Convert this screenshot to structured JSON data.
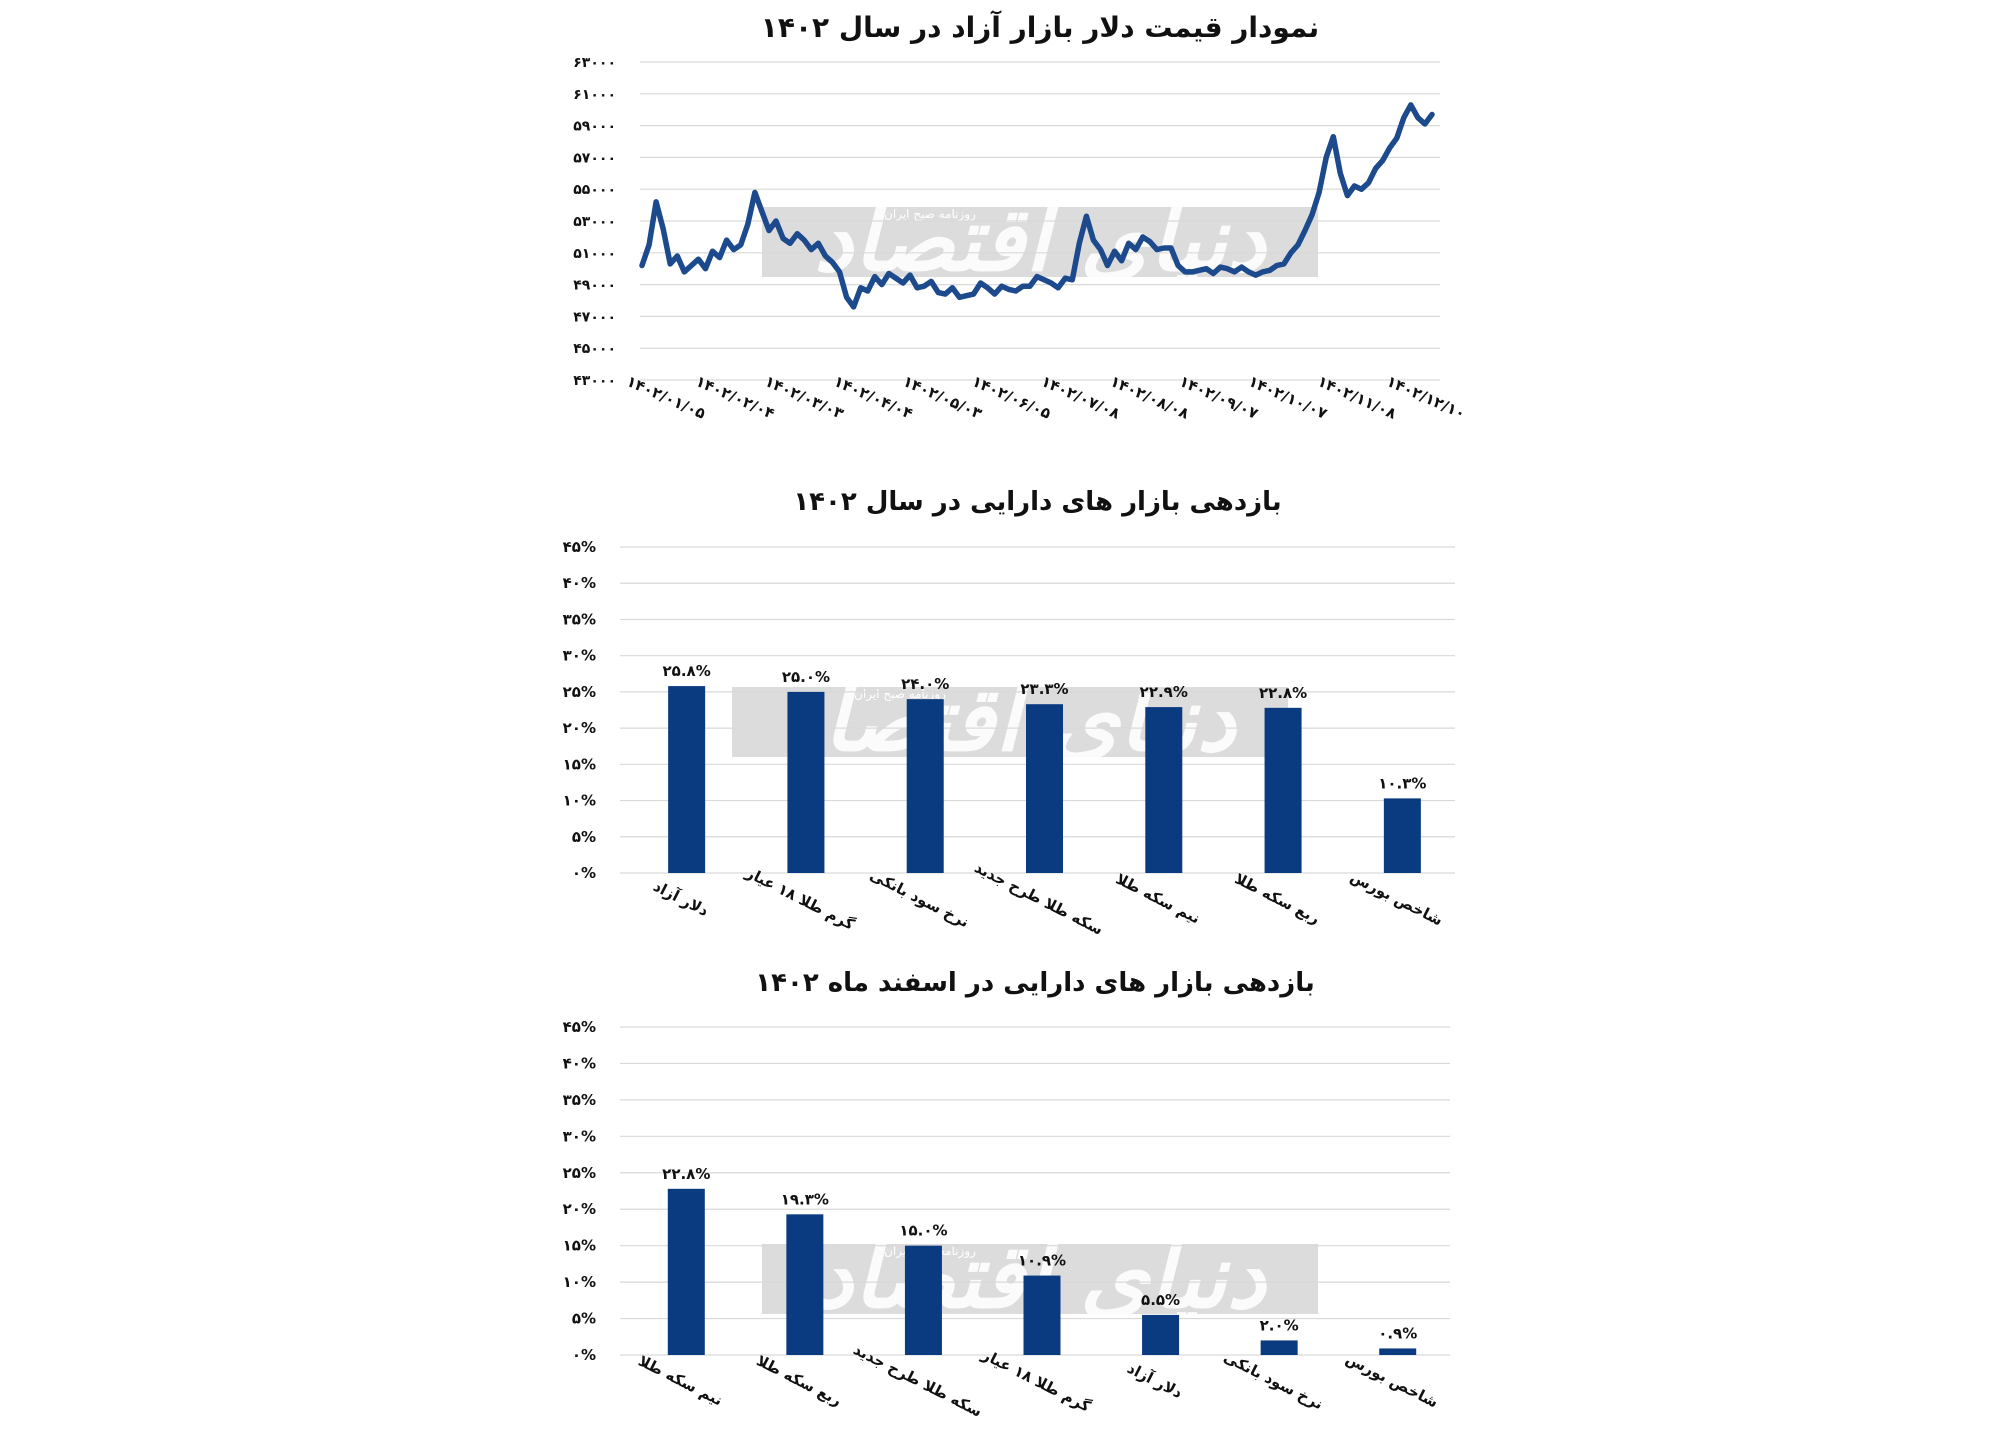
{
  "colors": {
    "bar": "#0a3a80",
    "line": "#1c4a8c",
    "grid": "#d9d9d9",
    "watermark": "#c8c8c8",
    "text": "#111111"
  },
  "watermark": {
    "main": "دنیای اقتصاد",
    "sub": "روزنامه صبح ایران"
  },
  "chart_data": [
    {
      "type": "line",
      "title": "نمودار قیمت دلار بازار آزاد در سال ۱۴۰۲",
      "y_tick_labels": [
        "۶۳۰۰۰",
        "۶۱۰۰۰",
        "۵۹۰۰۰",
        "۵۷۰۰۰",
        "۵۵۰۰۰",
        "۵۳۰۰۰",
        "۵۱۰۰۰",
        "۴۹۰۰۰",
        "۴۷۰۰۰",
        "۴۵۰۰۰",
        "۴۳۰۰۰"
      ],
      "ylim": [
        43000,
        63000
      ],
      "grid": true,
      "x_tick_labels": [
        "۱۴۰۲/۰۱/۰۵",
        "۱۴۰۲/۰۲/۰۴",
        "۱۴۰۲/۰۳/۰۳",
        "۱۴۰۲/۰۴/۰۴",
        "۱۴۰۲/۰۵/۰۳",
        "۱۴۰۲/۰۶/۰۵",
        "۱۴۰۲/۰۷/۰۸",
        "۱۴۰۲/۰۸/۰۸",
        "۱۴۰۲/۰۹/۰۷",
        "۱۴۰۲/۱۰/۰۷",
        "۱۴۰۲/۱۱/۰۸",
        "۱۴۰۲/۱۲/۱۰"
      ],
      "series": [
        {
          "values": [
            50200,
            51500,
            54200,
            52500,
            50300,
            50800,
            49800,
            50200,
            50600,
            50000,
            51100,
            50700,
            51800,
            51200,
            51500,
            52800,
            54800,
            53600,
            52400,
            53000,
            51900,
            51600,
            52200,
            51800,
            51200,
            51600,
            50800,
            50400,
            49800,
            48200,
            47600,
            48800,
            48600,
            49500,
            49000,
            49700,
            49400,
            49100,
            49600,
            48800,
            48900,
            49200,
            48500,
            48400,
            48800,
            48200,
            48300,
            48400,
            49100,
            48800,
            48400,
            48900,
            48700,
            48600,
            48900,
            48900,
            49500,
            49300,
            49100,
            48800,
            49400,
            49300,
            51600,
            53300,
            51800,
            51200,
            50200,
            51100,
            50500,
            51600,
            51200,
            52000,
            51700,
            51200,
            51300,
            51300,
            50200,
            49800,
            49800,
            49900,
            50000,
            49700,
            50100,
            50000,
            49800,
            50100,
            49800,
            49600,
            49800,
            49900,
            50200,
            50300,
            51000,
            51500,
            52400,
            53400,
            54800,
            57000,
            58300,
            56000,
            54600,
            55200,
            55000,
            55400,
            56300,
            56800,
            57600,
            58200,
            59500,
            60300,
            59500,
            59100,
            59700
          ]
        }
      ]
    },
    {
      "type": "bar",
      "title": "بازدهی بازار های دارایی در سال  ۱۴۰۲",
      "y_tick_labels": [
        "۴۵%",
        "۴۰%",
        "۳۵%",
        "۳۰%",
        "۲۵%",
        "۲۰%",
        "۱۵%",
        "۱۰%",
        "۵%",
        "۰%"
      ],
      "ylim": [
        0,
        45
      ],
      "grid": true,
      "categories": [
        "دلار آزاد",
        "گرم طلا ۱۸ عیار",
        "نرخ سود بانکی",
        "سکه طلا طرح جدید",
        "نیم سکه طلا",
        "ربع سکه طلا",
        "شاخص بورس"
      ],
      "values": [
        25.8,
        25.0,
        24.0,
        23.3,
        22.9,
        22.8,
        10.3
      ],
      "data_labels": [
        "۲۵.۸%",
        "۲۵.۰%",
        "۲۴.۰%",
        "۲۳.۳%",
        "۲۲.۹%",
        "۲۲.۸%",
        "۱۰.۳%"
      ]
    },
    {
      "type": "bar",
      "title": "بازدهی بازار های دارایی در اسفند ماه ۱۴۰۲",
      "y_tick_labels": [
        "۴۵%",
        "۴۰%",
        "۳۵%",
        "۳۰%",
        "۲۵%",
        "۲۰%",
        "۱۵%",
        "۱۰%",
        "۵%",
        "۰%"
      ],
      "ylim": [
        0,
        45
      ],
      "grid": true,
      "categories": [
        "نیم سکه طلا",
        "ربع سکه طلا",
        "سکه طلا طرح جدید",
        "گرم طلا ۱۸ عیار",
        "دلار آزاد",
        "نرخ سود بانکی",
        "شاخص بورس"
      ],
      "values": [
        22.8,
        19.3,
        15.0,
        10.9,
        5.5,
        2.0,
        0.9
      ],
      "data_labels": [
        "۲۲.۸%",
        "۱۹.۳%",
        "۱۵.۰%",
        "۱۰.۹%",
        "۵.۵%",
        "۲.۰%",
        "۰.۹%"
      ]
    }
  ]
}
